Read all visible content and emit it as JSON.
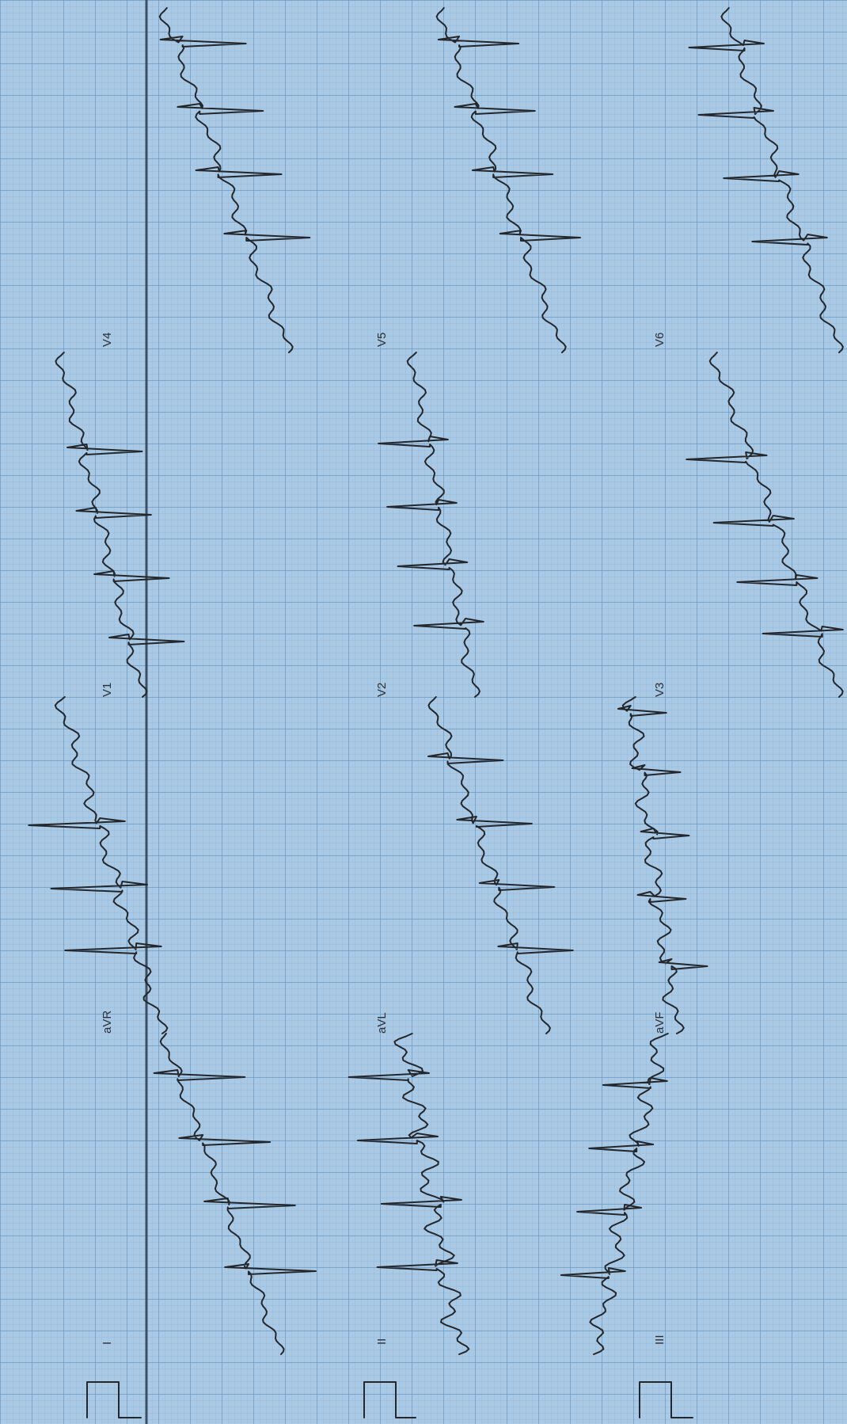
{
  "leads": [
    {
      "id": "I",
      "label": "I"
    },
    {
      "id": "II",
      "label": "II"
    },
    {
      "id": "III",
      "label": "III"
    },
    {
      "id": "aVR",
      "label": "aVR"
    },
    {
      "id": "aVL",
      "label": "aVL"
    },
    {
      "id": "aVF",
      "label": "aVF"
    },
    {
      "id": "V1",
      "label": "V1"
    },
    {
      "id": "V2",
      "label": "V2"
    },
    {
      "id": "V3",
      "label": "V3"
    },
    {
      "id": "V4",
      "label": "V4"
    },
    {
      "id": "V5",
      "label": "V5"
    },
    {
      "id": "V6",
      "label": "V6"
    }
  ],
  "colors": {
    "paper": "#a9c9e4",
    "grid_minor": "#8fb7da",
    "grid_major": "#5e90bf",
    "trace": "#23262b",
    "rhythm_line": "#3d4f63"
  }
}
